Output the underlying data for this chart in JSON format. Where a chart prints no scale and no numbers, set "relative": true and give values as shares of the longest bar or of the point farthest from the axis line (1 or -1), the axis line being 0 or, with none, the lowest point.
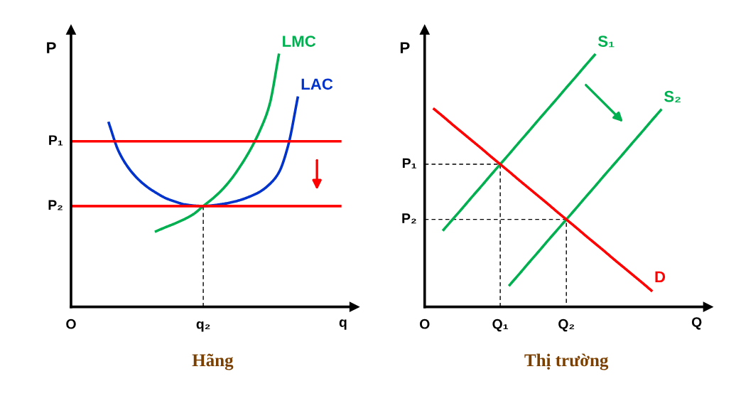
{
  "chart_data": [
    {
      "type": "line",
      "title": "Hãng",
      "xlabel": "q",
      "ylabel": "P",
      "relative": true,
      "categories": [
        "O",
        null,
        null,
        null,
        null,
        null,
        null,
        null,
        null,
        null,
        null,
        null,
        null,
        null,
        "q₂",
        null,
        null,
        null,
        null,
        null,
        null,
        null,
        null,
        null,
        null,
        null,
        null,
        null,
        null,
        null,
        null
      ],
      "series": [
        {
          "color": "#000000",
          "line_style": "dashed",
          "x": [
            "q₂",
            "q₂"
          ],
          "values": [
            0.4,
            0
          ]
        },
        {
          "name": "LMC",
          "color": "#00b050",
          "values": [
            null,
            null,
            null,
            null,
            null,
            null,
            null,
            null,
            null,
            0.3,
            0.316,
            0.331,
            0.348,
            0.369,
            0.4,
            0.43,
            0.465,
            0.509,
            0.563,
            0.625,
            0.7,
            0.8,
            1.0,
            null,
            null,
            null,
            null,
            null,
            null,
            null,
            null
          ]
        },
        {
          "name": "LAC",
          "color": "#0033cc",
          "values": [
            null,
            null,
            null,
            null,
            0.73,
            0.621,
            0.556,
            0.511,
            0.478,
            0.453,
            0.432,
            0.418,
            0.407,
            0.402,
            0.4,
            0.403,
            0.408,
            0.415,
            0.425,
            0.439,
            0.457,
            0.486,
            0.533,
            0.642,
            0.83,
            null,
            null,
            null,
            null,
            null,
            null
          ]
        }
      ],
      "ref_lines": [
        {
          "axis": "y",
          "value": 0.657,
          "label": "P₁",
          "color": "#ff0000"
        },
        {
          "axis": "y",
          "value": 0.4,
          "label": "P₂",
          "color": "#ff0000"
        }
      ]
    },
    {
      "type": "line",
      "title": "Thị trường",
      "xlabel": "Q",
      "ylabel": "P",
      "relative": true,
      "categories": [
        "O",
        null,
        null,
        null,
        null,
        null,
        null,
        null,
        "Q₁",
        null,
        null,
        null,
        null,
        null,
        null,
        "Q₂",
        null,
        null,
        null,
        null,
        null,
        null,
        null,
        null,
        null,
        null,
        null,
        null,
        null,
        null,
        null
      ],
      "series": [
        {
          "color": "#000000",
          "line_style": "dashed",
          "x": [
            "O",
            "Q₁",
            "Q₁"
          ],
          "values": [
            0.566,
            0.566,
            0
          ]
        },
        {
          "color": "#000000",
          "line_style": "dashed",
          "x": [
            "O",
            "Q₂",
            "Q₂"
          ],
          "values": [
            0.347,
            0.347,
            0
          ]
        },
        {
          "name": "S₁",
          "color": "#00b050",
          "values": [
            null,
            null,
            0.306,
            0.349,
            0.392,
            0.436,
            0.479,
            0.523,
            0.566,
            0.609,
            0.653,
            0.696,
            0.74,
            0.783,
            0.826,
            0.87,
            0.913,
            0.957,
            1.0,
            null,
            null,
            null,
            null,
            null,
            null,
            null,
            null,
            null,
            null,
            null,
            null
          ]
        },
        {
          "name": "S₂",
          "color": "#00b050",
          "values": [
            null,
            null,
            null,
            null,
            null,
            null,
            null,
            null,
            null,
            0.087,
            0.13,
            0.174,
            0.217,
            0.261,
            0.304,
            0.347,
            0.39,
            0.434,
            0.477,
            0.521,
            0.564,
            0.607,
            0.651,
            0.694,
            0.738,
            0.781,
            null,
            null,
            null,
            null,
            null
          ]
        },
        {
          "name": "D",
          "color": "#ff0000",
          "values": [
            null,
            0.785,
            0.754,
            0.722,
            0.691,
            0.66,
            0.629,
            0.597,
            0.566,
            0.535,
            0.503,
            0.472,
            0.441,
            0.41,
            0.378,
            0.347,
            0.316,
            0.284,
            0.253,
            0.222,
            0.19,
            0.159,
            0.128,
            0.097,
            0.065,
            null,
            null,
            null,
            null,
            null,
            null
          ]
        }
      ],
      "annotations": [
        {
          "text": "P₁",
          "x": "O",
          "y": 0.566
        },
        {
          "text": "P₂",
          "x": "O",
          "y": 0.347
        }
      ]
    }
  ]
}
